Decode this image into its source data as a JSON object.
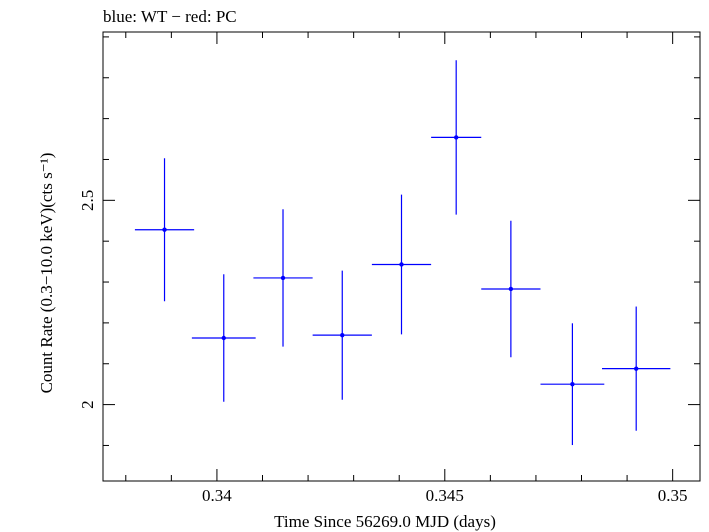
{
  "chart_data": {
    "type": "scatter",
    "title": "blue: WT − red: PC",
    "xlabel": "Time Since 56269.0 MJD (days)",
    "ylabel": "Count Rate (0.3−10.0 keV)(cts s⁻¹)",
    "xlim": [
      0.3375,
      0.3506
    ],
    "ylim": [
      1.813,
      2.912
    ],
    "x_ticks": [
      0.34,
      0.345,
      0.35
    ],
    "x_tick_labels": [
      "0.34",
      "0.345",
      "0.35"
    ],
    "y_ticks": [
      2,
      2.5
    ],
    "y_tick_labels": [
      "2",
      "2.5"
    ],
    "series": [
      {
        "name": "WT",
        "color": "#0000ff",
        "points": [
          {
            "x": 0.33885,
            "xerr": 0.00065,
            "y": 2.428,
            "yerr": 0.175
          },
          {
            "x": 0.34015,
            "xerr": 0.0007,
            "y": 2.163,
            "yerr": 0.156
          },
          {
            "x": 0.34145,
            "xerr": 0.00065,
            "y": 2.31,
            "yerr": 0.168
          },
          {
            "x": 0.34275,
            "xerr": 0.00065,
            "y": 2.17,
            "yerr": 0.158
          },
          {
            "x": 0.34405,
            "xerr": 0.00065,
            "y": 2.343,
            "yerr": 0.171
          },
          {
            "x": 0.34525,
            "xerr": 0.00055,
            "y": 2.654,
            "yerr": 0.189
          },
          {
            "x": 0.34645,
            "xerr": 0.00065,
            "y": 2.283,
            "yerr": 0.167
          },
          {
            "x": 0.3478,
            "xerr": 0.0007,
            "y": 2.05,
            "yerr": 0.149
          },
          {
            "x": 0.3492,
            "xerr": 0.00075,
            "y": 2.088,
            "yerr": 0.152
          }
        ]
      }
    ]
  }
}
